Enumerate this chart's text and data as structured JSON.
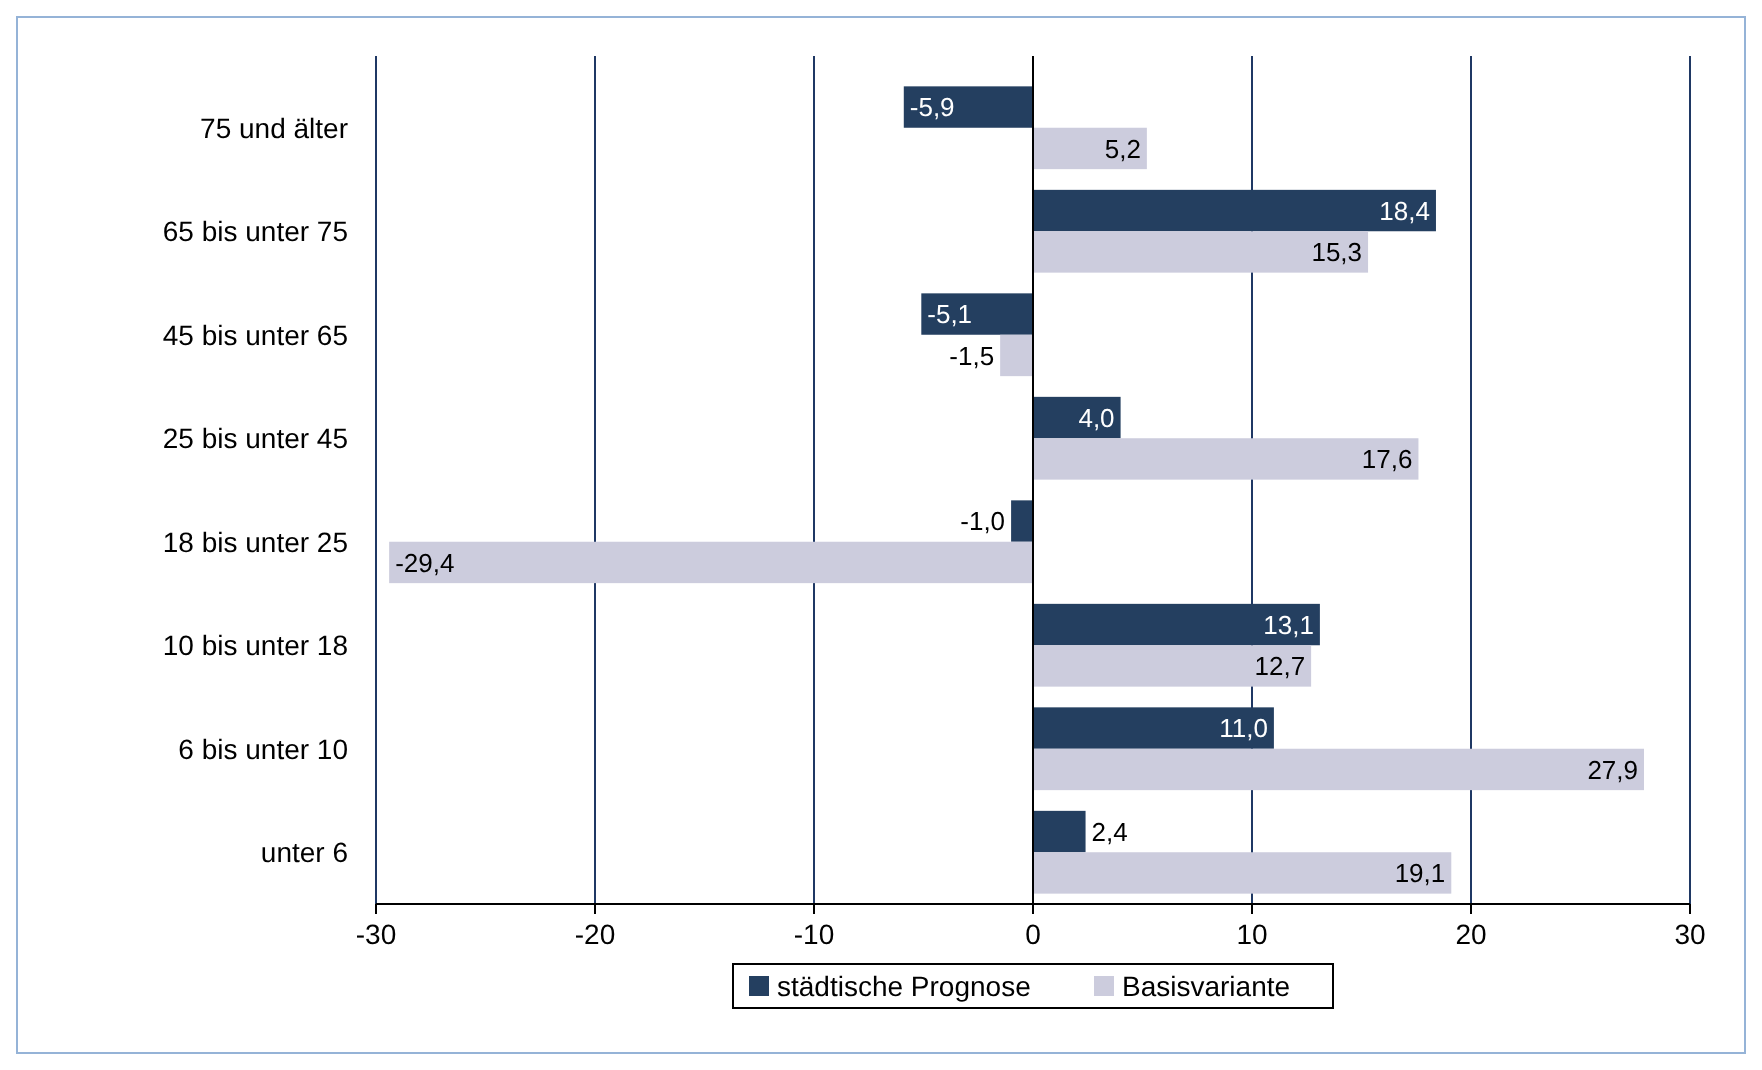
{
  "chart_data": {
    "type": "bar",
    "orientation": "horizontal",
    "categories": [
      "75 und älter",
      "65 bis unter 75",
      "45 bis unter 65",
      "25 bis unter 45",
      "18 bis unter 25",
      "10 bis unter 18",
      "6 bis unter 10",
      "unter 6"
    ],
    "series": [
      {
        "name": "städtische Prognose",
        "color": "#243f60",
        "values": [
          -5.9,
          18.4,
          -5.1,
          4.0,
          -1.0,
          13.1,
          11.0,
          2.4
        ],
        "value_labels": [
          "-5,9",
          "18,4",
          "-5,1",
          "4,0",
          "-1,0",
          "13,1",
          "11,0",
          "2,4"
        ]
      },
      {
        "name": "Basisvariante",
        "color": "#ccccdd",
        "values": [
          5.2,
          15.3,
          -1.5,
          17.6,
          -29.4,
          12.7,
          27.9,
          19.1
        ],
        "value_labels": [
          "5,2",
          "15,3",
          "-1,5",
          "17,6",
          "-29,4",
          "12,7",
          "27,9",
          "19,1"
        ]
      }
    ],
    "xlim": [
      -30,
      30
    ],
    "xticks": [
      -30,
      -20,
      -10,
      0,
      10,
      20,
      30
    ],
    "grid": "x",
    "legend": "bottom"
  }
}
